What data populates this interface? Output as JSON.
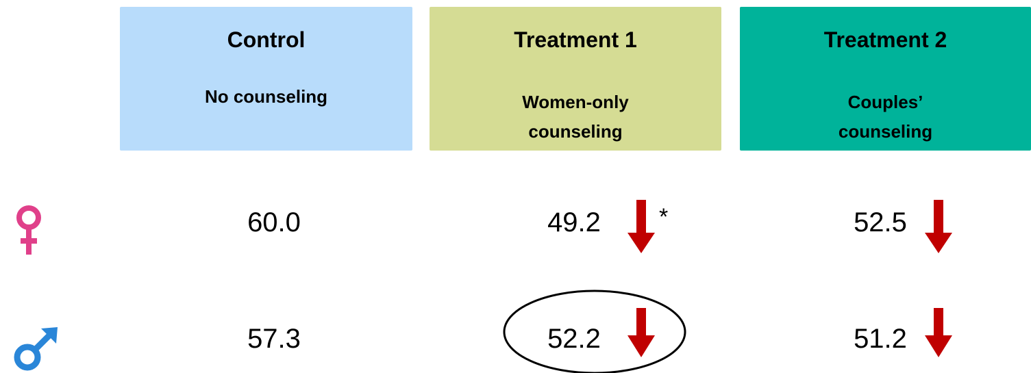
{
  "columns": [
    {
      "title": "Control",
      "subtitle": [
        "No counseling"
      ]
    },
    {
      "title": "Treatment 1",
      "subtitle": [
        "Women-only",
        "counseling"
      ]
    },
    {
      "title": "Treatment 2",
      "subtitle": [
        "Couples’",
        "counseling"
      ]
    }
  ],
  "rows": [
    {
      "values": [
        "60.0",
        "49.2",
        "52.5"
      ],
      "note": "*"
    },
    {
      "values": [
        "57.3",
        "52.2",
        "51.2"
      ]
    }
  ]
}
